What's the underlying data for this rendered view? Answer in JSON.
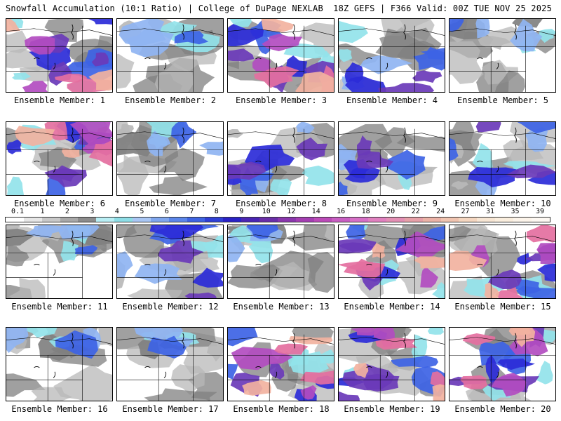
{
  "header": {
    "title": "Snowfall Accumulation (10:1 Ratio) | College of DuPage NEXLAB",
    "run_info": "18Z GEFS | F366 Valid: 00Z TUE NOV 25 2025"
  },
  "colors": {
    "background": "#ffffff",
    "map_white": "#ffffff",
    "map_gray": "#b8b8b8",
    "map_dark_gray": "#808080",
    "cyan": "#93e3ea",
    "light_blue": "#8fb4f2",
    "blue": "#3d63e5",
    "deep_blue": "#2b2bd8",
    "purple": "#6a3ab8",
    "magenta": "#b24cc0",
    "pink": "#e46fa0",
    "salmon": "#f2b2a0",
    "border_lines": "#000000"
  },
  "legend": {
    "labels": [
      "0.1",
      "1",
      "2",
      "3",
      "4",
      "5",
      "6",
      "7",
      "8",
      "9",
      "10",
      "12",
      "14",
      "16",
      "18",
      "20",
      "22",
      "24",
      "27",
      "31",
      "35",
      "39"
    ],
    "swatches": [
      "#ffffff",
      "#e6e6e6",
      "#c8c8c8",
      "#a8a8a8",
      "#8c8c8c",
      "#b8eef4",
      "#8ddde6",
      "#a9c6f4",
      "#7fa6ee",
      "#5b86ea",
      "#3e64e2",
      "#2f3fd6",
      "#2a22c6",
      "#4a25b4",
      "#6a2ea8",
      "#8a36ad",
      "#a43eb2",
      "#bb4ab8",
      "#c85ec2",
      "#d66fc6",
      "#e080bf",
      "#e38fb4",
      "#e6a0a8",
      "#ebb2a6",
      "#f0c4b0",
      "#f4d6c0",
      "#f7e6d4",
      "#faeede",
      "#fcf4ea",
      "#fdf8f2"
    ]
  },
  "members": [
    {
      "caption": "Ensemble Member: 1",
      "palette": "heavy"
    },
    {
      "caption": "Ensemble Member: 2",
      "palette": "light"
    },
    {
      "caption": "Ensemble Member: 3",
      "palette": "heavy"
    },
    {
      "caption": "Ensemble Member: 4",
      "palette": "moderate"
    },
    {
      "caption": "Ensemble Member: 5",
      "palette": "light"
    },
    {
      "caption": "Ensemble Member: 6",
      "palette": "heavy"
    },
    {
      "caption": "Ensemble Member: 7",
      "palette": "light"
    },
    {
      "caption": "Ensemble Member: 8",
      "palette": "moderate"
    },
    {
      "caption": "Ensemble Member: 9",
      "palette": "moderate"
    },
    {
      "caption": "Ensemble Member: 10",
      "palette": "moderate"
    },
    {
      "caption": "Ensemble Member: 11",
      "palette": "light"
    },
    {
      "caption": "Ensemble Member: 12",
      "palette": "moderate"
    },
    {
      "caption": "Ensemble Member: 13",
      "palette": "light"
    },
    {
      "caption": "Ensemble Member: 14",
      "palette": "heavy"
    },
    {
      "caption": "Ensemble Member: 15",
      "palette": "heavy"
    },
    {
      "caption": "Ensemble Member: 16",
      "palette": "light"
    },
    {
      "caption": "Ensemble Member: 17",
      "palette": "light"
    },
    {
      "caption": "Ensemble Member: 18",
      "palette": "heavy"
    },
    {
      "caption": "Ensemble Member: 19",
      "palette": "heavy"
    },
    {
      "caption": "Ensemble Member: 20",
      "palette": "heavy"
    }
  ]
}
